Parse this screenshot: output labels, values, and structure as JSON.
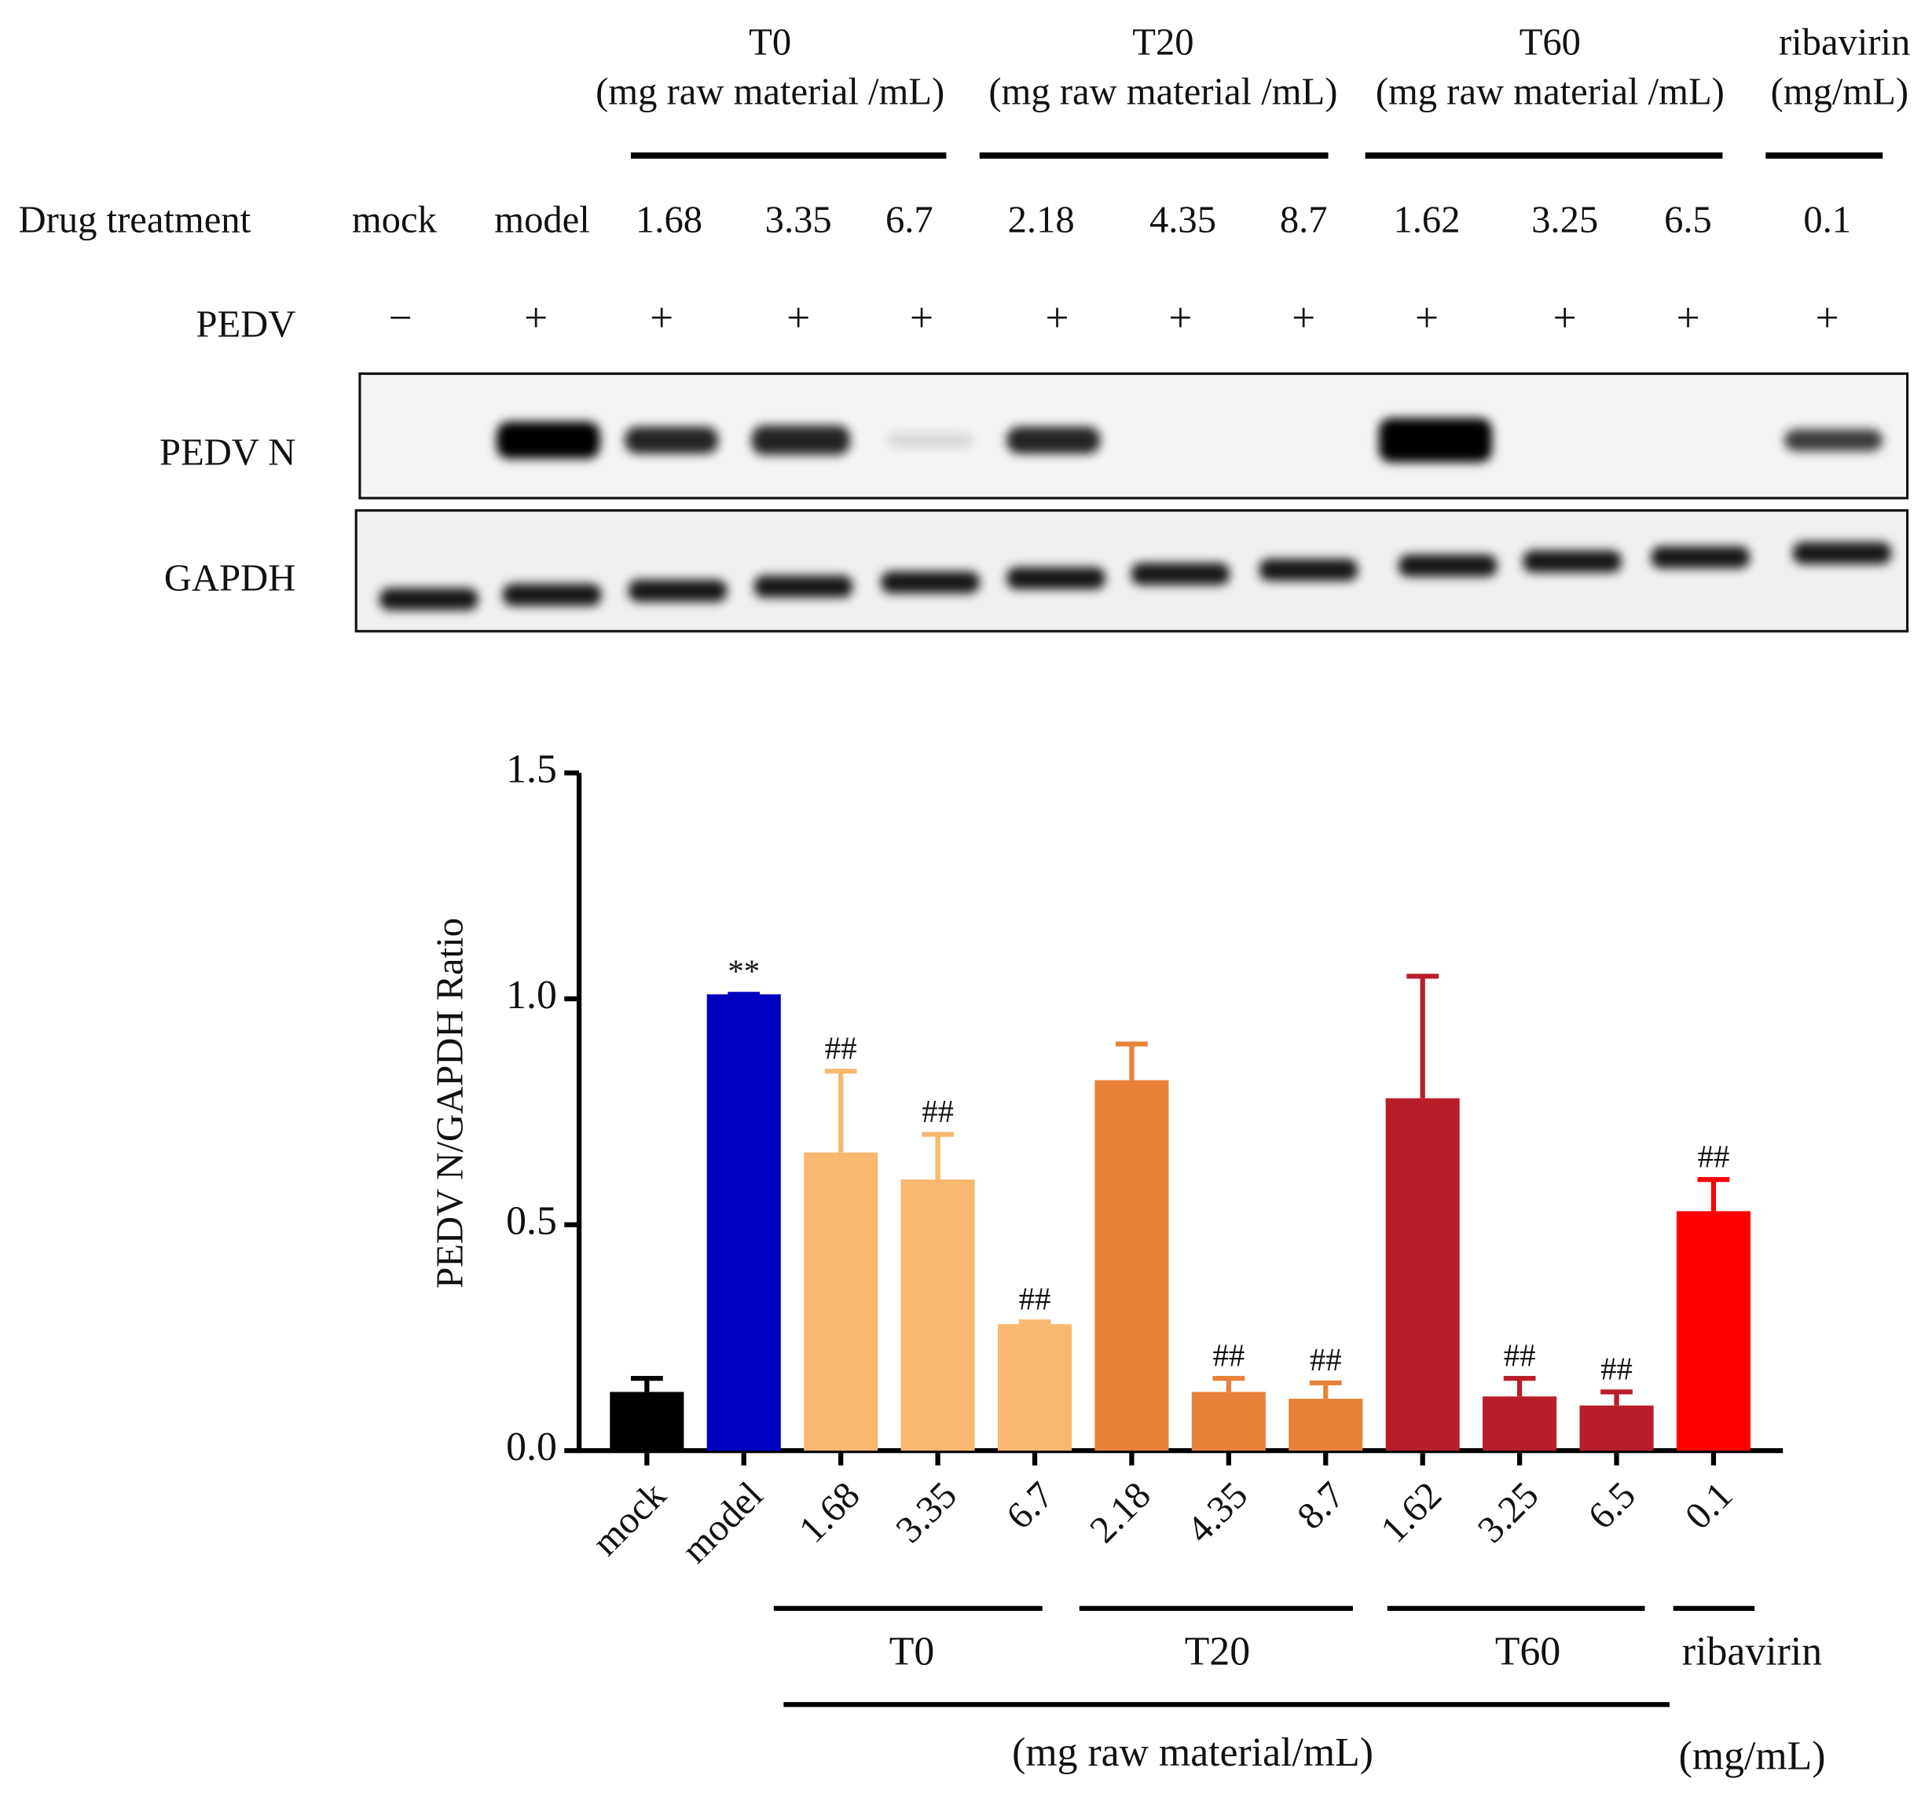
{
  "blot": {
    "groups": [
      {
        "name": "T0",
        "unit": "(mg raw material /mL)"
      },
      {
        "name": "T20",
        "unit": "(mg raw material /mL)"
      },
      {
        "name": "T60",
        "unit": "(mg raw material /mL)"
      },
      {
        "name": "ribavirin",
        "unit": "(mg/mL)"
      }
    ],
    "treatment_label": "Drug treatment",
    "treatments": [
      "mock",
      "model",
      "1.68",
      "3.35",
      "6.7",
      "2.18",
      "4.35",
      "8.7",
      "1.62",
      "3.25",
      "6.5",
      "0.1"
    ],
    "virus_label": "PEDV",
    "virus": [
      "−",
      "+",
      "+",
      "+",
      "+",
      "+",
      "+",
      "+",
      "+",
      "+",
      "+",
      "+"
    ],
    "bands": [
      "PEDV N",
      "GAPDH"
    ]
  },
  "chart_data": {
    "type": "bar",
    "y_label": "PEDV N/GAPDH Ratio",
    "categories": [
      "mock",
      "model",
      "1.68",
      "3.35",
      "6.7",
      "2.18",
      "4.35",
      "8.7",
      "1.62",
      "3.25",
      "6.5",
      "0.1"
    ],
    "values": [
      0.13,
      1.01,
      0.66,
      0.6,
      0.28,
      0.82,
      0.13,
      0.115,
      0.78,
      0.12,
      0.1,
      0.53
    ],
    "errors": [
      0.03,
      0,
      0.18,
      0.1,
      0.005,
      0.08,
      0.03,
      0.035,
      0.27,
      0.04,
      0.03,
      0.07
    ],
    "colors": [
      "#000000",
      "#0000c0",
      "#f9b870",
      "#f9b870",
      "#f9b870",
      "#e8823a",
      "#e8823a",
      "#e8823a",
      "#b81e2a",
      "#b81e2a",
      "#b81e2a",
      "#ff0000"
    ],
    "annotations": [
      null,
      "**",
      "##",
      "##",
      "##",
      null,
      "##",
      "##",
      null,
      "##",
      "##",
      "##"
    ],
    "groups": [
      "T0",
      "T20",
      "T60",
      "ribavirin"
    ],
    "units": [
      "(mg raw material/mL)",
      "(mg/mL)"
    ],
    "ylim": [
      0,
      1.5
    ],
    "yticks": [
      {
        "value": 0,
        "label": "0.0"
      },
      0.5,
      {
        "value": 1,
        "label": "1.0"
      },
      1.5
    ]
  }
}
